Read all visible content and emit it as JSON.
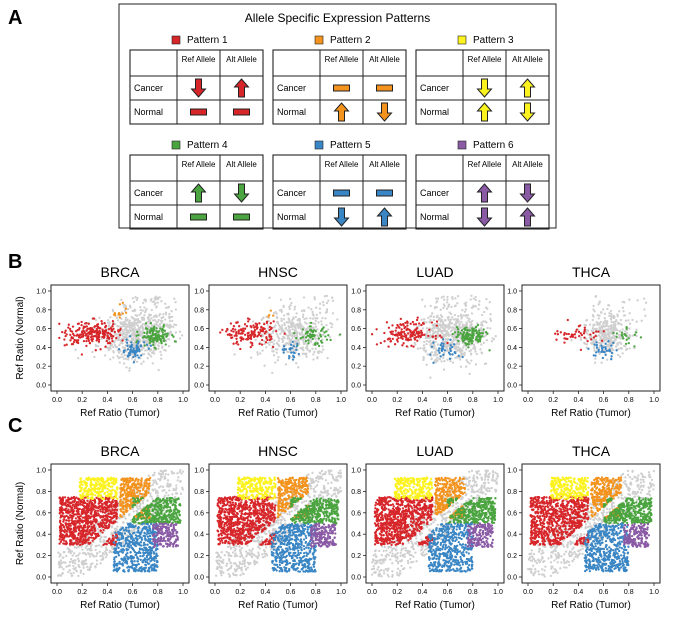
{
  "panel_letters": [
    "A",
    "B",
    "C"
  ],
  "panel_a": {
    "title": "Allele Specific Expression Patterns",
    "col_ref": "Ref Allele",
    "col_alt": "Alt Allele",
    "row_cancer": "Cancer",
    "row_normal": "Normal",
    "patterns": [
      {
        "name": "Pattern 1",
        "color": "#d7262a",
        "cancer": [
          "down",
          "up"
        ],
        "normal": [
          "bar",
          "bar"
        ]
      },
      {
        "name": "Pattern 2",
        "color": "#f3931d",
        "cancer": [
          "bar",
          "bar"
        ],
        "normal": [
          "up",
          "down"
        ]
      },
      {
        "name": "Pattern 3",
        "color": "#fbf21e",
        "cancer": [
          "down",
          "up"
        ],
        "normal": [
          "up",
          "down"
        ]
      },
      {
        "name": "Pattern 4",
        "color": "#4aa43f",
        "cancer": [
          "up",
          "down"
        ],
        "normal": [
          "bar",
          "bar"
        ]
      },
      {
        "name": "Pattern 5",
        "color": "#3a86c4",
        "cancer": [
          "bar",
          "bar"
        ],
        "normal": [
          "down",
          "up"
        ]
      },
      {
        "name": "Pattern 6",
        "color": "#8a5aa5",
        "cancer": [
          "up",
          "down"
        ],
        "normal": [
          "down",
          "up"
        ]
      }
    ]
  },
  "colors": {
    "background_points": "#cfcfcf",
    "pattern_1": "#d7262a",
    "pattern_2": "#f3931d",
    "pattern_3": "#fbf21e",
    "pattern_4": "#4aa43f",
    "pattern_5": "#3a86c4",
    "pattern_6": "#8a5aa5"
  },
  "chart_data": [
    {
      "panel": "B",
      "type": "scatter",
      "titles": [
        "BRCA",
        "HNSC",
        "LUAD",
        "THCA"
      ],
      "xlabel": "Ref Ratio (Tumor)",
      "ylabel": "Ref Ratio (Normal)",
      "xlim": [
        0,
        1
      ],
      "ylim": [
        0,
        1
      ],
      "xticks": [
        "0.0",
        "0.2",
        "0.4",
        "0.6",
        "0.8",
        "1.0"
      ],
      "yticks": [
        "0.0",
        "0.2",
        "0.4",
        "0.6",
        "0.8",
        "1.0"
      ],
      "series": [
        {
          "name": "background",
          "color": "#cfcfcf",
          "center": [
            0.62,
            0.52
          ],
          "spread": [
            0.14,
            0.13
          ]
        },
        {
          "name": "Pattern 1",
          "color": "#d7262a",
          "center": [
            0.28,
            0.55
          ],
          "spread": [
            0.1,
            0.06
          ]
        },
        {
          "name": "Pattern 2",
          "color": "#f3931d",
          "center": [
            0.48,
            0.78
          ],
          "spread": [
            0.05,
            0.05
          ]
        },
        {
          "name": "Pattern 4",
          "color": "#4aa43f",
          "center": [
            0.78,
            0.52
          ],
          "spread": [
            0.06,
            0.05
          ]
        },
        {
          "name": "Pattern 5",
          "color": "#3a86c4",
          "center": [
            0.6,
            0.37
          ],
          "spread": [
            0.05,
            0.05
          ]
        }
      ]
    },
    {
      "panel": "C",
      "type": "scatter",
      "titles": [
        "BRCA",
        "HNSC",
        "LUAD",
        "THCA"
      ],
      "xlabel": "Ref Ratio (Tumor)",
      "ylabel": "Ref Ratio (Normal)",
      "xlim": [
        0,
        1
      ],
      "ylim": [
        0,
        1
      ],
      "xticks": [
        "0.0",
        "0.2",
        "0.4",
        "0.6",
        "0.8",
        "1.0"
      ],
      "yticks": [
        "0.0",
        "0.2",
        "0.4",
        "0.6",
        "0.8",
        "1.0"
      ],
      "series": [
        {
          "name": "background",
          "color": "#cfcfcf",
          "region": "diagonal band"
        },
        {
          "name": "Pattern 1",
          "color": "#d7262a",
          "region": "x<0.5, 0.3<y<0.75"
        },
        {
          "name": "Pattern 2",
          "color": "#f3931d",
          "region": "0.5<x<0.75, y>0.6"
        },
        {
          "name": "Pattern 3",
          "color": "#fbf21e",
          "region": "x<0.5, y>0.75"
        },
        {
          "name": "Pattern 4",
          "color": "#4aa43f",
          "region": "x>0.6, 0.5<y<0.75"
        },
        {
          "name": "Pattern 5",
          "color": "#3a86c4",
          "region": "0.45<x<0.8, y<0.5"
        },
        {
          "name": "Pattern 6",
          "color": "#8a5aa5",
          "region": "x>0.75, 0.3<y<0.5"
        }
      ]
    }
  ]
}
